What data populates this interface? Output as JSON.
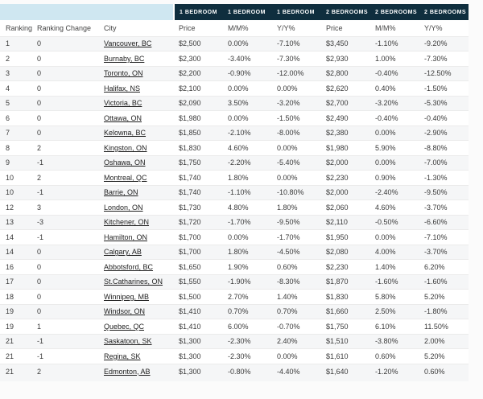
{
  "table": {
    "group_headers": [
      "1 BEDROOM",
      "1 BEDROOM",
      "1 BEDROOM",
      "2 BEDROOMS",
      "2 BEDROOMS",
      "2 BEDROOMS"
    ],
    "column_headers": [
      "Ranking",
      "Ranking Change",
      "City",
      "Price",
      "M/M%",
      "Y/Y%",
      "Price",
      "M/M%",
      "Y/Y%"
    ],
    "colors": {
      "group_header_bg": "#0f2e3e",
      "group_header_text": "#ffffff",
      "corner_bg": "#cfe7f1",
      "stripe_bg": "#f5f6f7",
      "row_border": "#ebebeb",
      "body_text": "#3a3a3a",
      "city_link_text": "#1d1d1d"
    }
  },
  "chart_data": {
    "type": "table",
    "column_groups": [
      "",
      "",
      "",
      "1 BEDROOM",
      "1 BEDROOM",
      "1 BEDROOM",
      "2 BEDROOMS",
      "2 BEDROOMS",
      "2 BEDROOMS"
    ],
    "columns": [
      "Ranking",
      "Ranking Change",
      "City",
      "1 Bedroom Price",
      "1 Bedroom M/M%",
      "1 Bedroom Y/Y%",
      "2 Bedrooms Price",
      "2 Bedrooms M/M%",
      "2 Bedrooms Y/Y%"
    ],
    "rows": [
      [
        "1",
        "0",
        "Vancouver, BC",
        "$2,500",
        "0.00%",
        "-7.10%",
        "$3,450",
        "-1.10%",
        "-9.20%"
      ],
      [
        "2",
        "0",
        "Burnaby, BC",
        "$2,300",
        "-3.40%",
        "-7.30%",
        "$2,930",
        "1.00%",
        "-7.30%"
      ],
      [
        "3",
        "0",
        "Toronto, ON",
        "$2,200",
        "-0.90%",
        "-12.00%",
        "$2,800",
        "-0.40%",
        "-12.50%"
      ],
      [
        "4",
        "0",
        "Halifax, NS",
        "$2,100",
        "0.00%",
        "0.00%",
        "$2,620",
        "0.40%",
        "-1.50%"
      ],
      [
        "5",
        "0",
        "Victoria, BC",
        "$2,090",
        "3.50%",
        "-3.20%",
        "$2,700",
        "-3.20%",
        "-5.30%"
      ],
      [
        "6",
        "0",
        "Ottawa, ON",
        "$1,980",
        "0.00%",
        "-1.50%",
        "$2,490",
        "-0.40%",
        "-0.40%"
      ],
      [
        "7",
        "0",
        "Kelowna, BC",
        "$1,850",
        "-2.10%",
        "-8.00%",
        "$2,380",
        "0.00%",
        "-2.90%"
      ],
      [
        "8",
        "2",
        "Kingston, ON",
        "$1,830",
        "4.60%",
        "0.00%",
        "$1,980",
        "5.90%",
        "-8.80%"
      ],
      [
        "9",
        "-1",
        "Oshawa, ON",
        "$1,750",
        "-2.20%",
        "-5.40%",
        "$2,000",
        "0.00%",
        "-7.00%"
      ],
      [
        "10",
        "2",
        "Montreal, QC",
        "$1,740",
        "1.80%",
        "0.00%",
        "$2,230",
        "0.90%",
        "-1.30%"
      ],
      [
        "10",
        "-1",
        "Barrie, ON",
        "$1,740",
        "-1.10%",
        "-10.80%",
        "$2,000",
        "-2.40%",
        "-9.50%"
      ],
      [
        "12",
        "3",
        "London, ON",
        "$1,730",
        "4.80%",
        "1.80%",
        "$2,060",
        "4.60%",
        "-3.70%"
      ],
      [
        "13",
        "-3",
        "Kitchener, ON",
        "$1,720",
        "-1.70%",
        "-9.50%",
        "$2,110",
        "-0.50%",
        "-6.60%"
      ],
      [
        "14",
        "-1",
        "Hamilton, ON",
        "$1,700",
        "0.00%",
        "-1.70%",
        "$1,950",
        "0.00%",
        "-7.10%"
      ],
      [
        "14",
        "0",
        "Calgary, AB",
        "$1,700",
        "1.80%",
        "-4.50%",
        "$2,080",
        "4.00%",
        "-3.70%"
      ],
      [
        "16",
        "0",
        "Abbotsford, BC",
        "$1,650",
        "1.90%",
        "0.60%",
        "$2,230",
        "1.40%",
        "6.20%"
      ],
      [
        "17",
        "0",
        "St.Catharines, ON",
        "$1,550",
        "-1.90%",
        "-8.30%",
        "$1,870",
        "-1.60%",
        "-1.60%"
      ],
      [
        "18",
        "0",
        "Winnipeg, MB",
        "$1,500",
        "2.70%",
        "1.40%",
        "$1,830",
        "5.80%",
        "5.20%"
      ],
      [
        "19",
        "0",
        "Windsor, ON",
        "$1,410",
        "0.70%",
        "0.70%",
        "$1,660",
        "2.50%",
        "-1.80%"
      ],
      [
        "19",
        "1",
        "Quebec, QC",
        "$1,410",
        "6.00%",
        "-0.70%",
        "$1,750",
        "6.10%",
        "11.50%"
      ],
      [
        "21",
        "-1",
        "Saskatoon, SK",
        "$1,300",
        "-2.30%",
        "2.40%",
        "$1,510",
        "-3.80%",
        "2.00%"
      ],
      [
        "21",
        "-1",
        "Regina, SK",
        "$1,300",
        "-2.30%",
        "0.00%",
        "$1,610",
        "0.60%",
        "5.20%"
      ],
      [
        "21",
        "2",
        "Edmonton, AB",
        "$1,300",
        "-0.80%",
        "-4.40%",
        "$1,640",
        "-1.20%",
        "0.60%"
      ]
    ]
  }
}
